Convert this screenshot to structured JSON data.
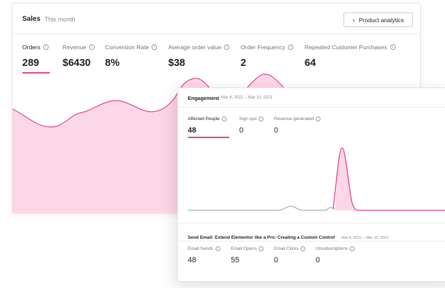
{
  "sales": {
    "title": "Sales",
    "period": "This month",
    "button_label": "Product analytics",
    "metrics": [
      {
        "label": "Orders",
        "value": "289"
      },
      {
        "label": "Revenue",
        "value": "$6430"
      },
      {
        "label": "Conversion Rate",
        "value": "8%"
      },
      {
        "label": "Average order value",
        "value": "$38"
      },
      {
        "label": "Order Frequency",
        "value": "2"
      },
      {
        "label": "Repeated Customer Purchases",
        "value": "64"
      }
    ],
    "accent_color": "#e2408f",
    "fill_color": "#fcd7e8"
  },
  "engagement": {
    "title": "Engagement",
    "date_range": "Mar 8, 2021 – Mar 10, 2021",
    "metrics": [
      {
        "label": "Affected People",
        "value": "48"
      },
      {
        "label": "Sign ups",
        "value": "0"
      },
      {
        "label": "Revenue generated",
        "value": "0"
      }
    ]
  },
  "send_email": {
    "title": "Send Email: Extend Elementor like a Pro: Creating a Custom Control",
    "date_range": "Mar 8, 2021 – Mar 10, 2021",
    "metrics": [
      {
        "label": "Email Sends",
        "value": "48"
      },
      {
        "label": "Email Opens",
        "value": "55"
      },
      {
        "label": "Email Clicks",
        "value": "0"
      },
      {
        "label": "Unsubscriptions",
        "value": "0"
      }
    ]
  }
}
